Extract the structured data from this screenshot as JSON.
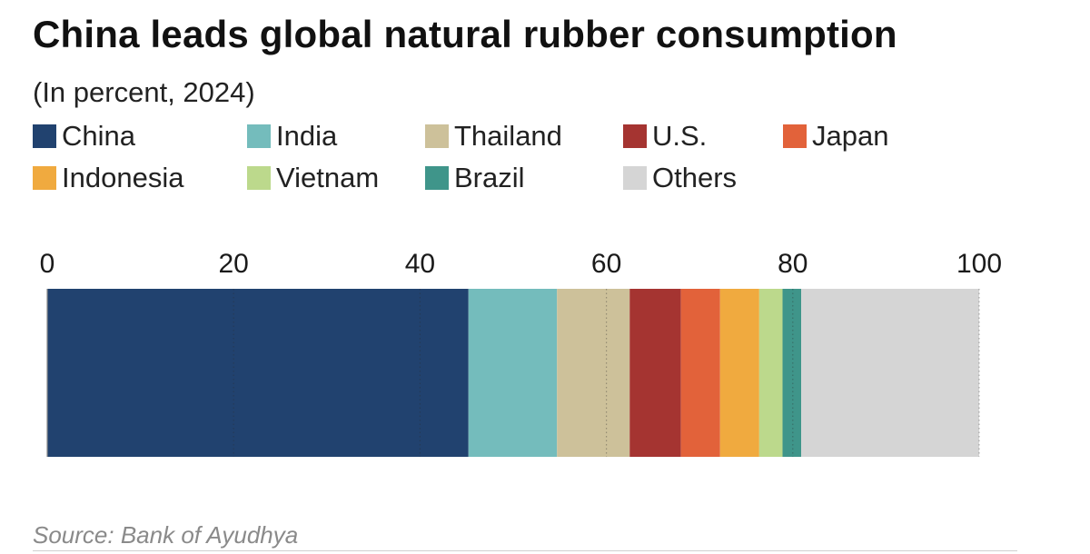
{
  "title": "China leads global natural rubber consumption",
  "subtitle": "(In percent, 2024)",
  "source": "Source: Bank of Ayudhya",
  "chart_data": {
    "type": "bar",
    "orientation": "horizontal",
    "stacked": true,
    "xlim": [
      0,
      100
    ],
    "ticks": [
      "0",
      "20",
      "40",
      "60",
      "80",
      "100"
    ],
    "tick_values": [
      0,
      20,
      40,
      60,
      80,
      100
    ],
    "grid": "dotted vertical",
    "legend_position": "top",
    "series": [
      {
        "name": "China",
        "value": 45.2,
        "color": "#21426f"
      },
      {
        "name": "India",
        "value": 9.5,
        "color": "#74bcbc"
      },
      {
        "name": "Thailand",
        "value": 7.8,
        "color": "#cdc19a"
      },
      {
        "name": "U.S.",
        "value": 5.5,
        "color": "#a53431"
      },
      {
        "name": "Japan",
        "value": 4.2,
        "color": "#e2623a"
      },
      {
        "name": "Indonesia",
        "value": 4.2,
        "color": "#f0aa3f"
      },
      {
        "name": "Vietnam",
        "value": 2.5,
        "color": "#bcd98c"
      },
      {
        "name": "Brazil",
        "value": 2.0,
        "color": "#3f958a"
      },
      {
        "name": "Others",
        "value": 19.1,
        "color": "#d5d5d5"
      }
    ]
  }
}
